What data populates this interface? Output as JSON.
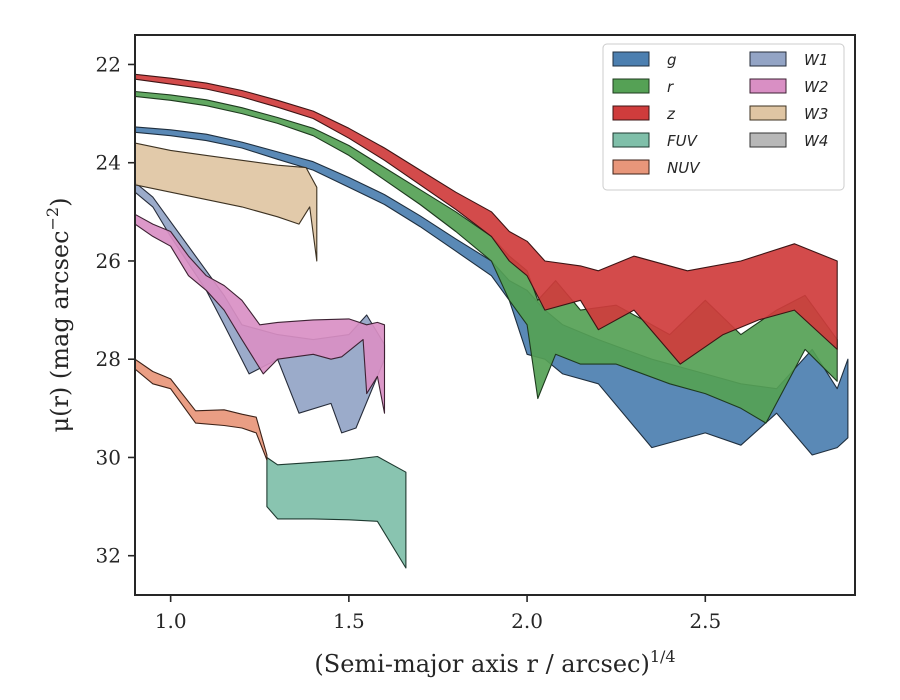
{
  "chart_data": {
    "type": "area",
    "xlabel": "(Semi-major axis r / arcsec)",
    "xlabel_sup": "1/4",
    "ylabel": "μ(r) (mag arcsec",
    "ylabel_sup": "−2",
    "ylabel_tail": ")",
    "xlim": [
      0.9,
      2.92
    ],
    "ylim": [
      32.8,
      21.4
    ],
    "y_inverted": true,
    "xticks": [
      1.0,
      1.5,
      2.0,
      2.5
    ],
    "xtick_labels": [
      "1.0",
      "1.5",
      "2.0",
      "2.5"
    ],
    "yticks": [
      22,
      24,
      26,
      28,
      30,
      32
    ],
    "ytick_labels": [
      "22",
      "24",
      "26",
      "28",
      "30",
      "32"
    ],
    "grid": false,
    "legend": {
      "placement": "top-right",
      "columns": 2
    },
    "series": [
      {
        "name": "g",
        "label": "g",
        "color": "#4c7fb0",
        "edge": "#1f2f3f",
        "upper": [
          [
            0.9,
            23.27
          ],
          [
            1.0,
            23.33
          ],
          [
            1.1,
            23.42
          ],
          [
            1.2,
            23.58
          ],
          [
            1.3,
            23.78
          ],
          [
            1.4,
            23.98
          ],
          [
            1.5,
            24.3
          ],
          [
            1.6,
            24.65
          ],
          [
            1.7,
            25.08
          ],
          [
            1.8,
            25.55
          ],
          [
            1.9,
            26.0
          ],
          [
            1.95,
            26.4
          ],
          [
            2.0,
            26.6
          ],
          [
            2.05,
            27.0
          ],
          [
            2.1,
            27.3
          ],
          [
            2.2,
            27.6
          ],
          [
            2.35,
            28.0
          ],
          [
            2.5,
            28.3
          ],
          [
            2.6,
            28.5
          ],
          [
            2.7,
            28.6
          ],
          [
            2.8,
            27.8
          ],
          [
            2.87,
            28.6
          ],
          [
            2.9,
            28.0
          ]
        ],
        "lower": [
          [
            0.9,
            23.38
          ],
          [
            1.0,
            23.45
          ],
          [
            1.1,
            23.55
          ],
          [
            1.2,
            23.7
          ],
          [
            1.3,
            23.93
          ],
          [
            1.4,
            24.15
          ],
          [
            1.5,
            24.5
          ],
          [
            1.6,
            24.85
          ],
          [
            1.7,
            25.3
          ],
          [
            1.8,
            25.8
          ],
          [
            1.9,
            26.3
          ],
          [
            1.95,
            26.8
          ],
          [
            2.0,
            27.9
          ],
          [
            2.05,
            28.0
          ],
          [
            2.1,
            28.3
          ],
          [
            2.2,
            28.5
          ],
          [
            2.35,
            29.8
          ],
          [
            2.5,
            29.5
          ],
          [
            2.6,
            29.75
          ],
          [
            2.7,
            29.1
          ],
          [
            2.8,
            29.95
          ],
          [
            2.87,
            29.8
          ],
          [
            2.9,
            29.6
          ]
        ]
      },
      {
        "name": "r",
        "label": "r",
        "color": "#55a155",
        "edge": "#1e3a1e",
        "upper": [
          [
            0.9,
            22.55
          ],
          [
            1.0,
            22.62
          ],
          [
            1.1,
            22.72
          ],
          [
            1.2,
            22.88
          ],
          [
            1.3,
            23.08
          ],
          [
            1.4,
            23.3
          ],
          [
            1.5,
            23.65
          ],
          [
            1.6,
            24.1
          ],
          [
            1.7,
            24.55
          ],
          [
            1.8,
            25.0
          ],
          [
            1.9,
            25.5
          ],
          [
            1.95,
            25.9
          ],
          [
            2.0,
            26.2
          ],
          [
            2.03,
            26.8
          ],
          [
            2.08,
            26.4
          ],
          [
            2.15,
            27.0
          ],
          [
            2.25,
            26.9
          ],
          [
            2.4,
            27.5
          ],
          [
            2.5,
            26.8
          ],
          [
            2.6,
            27.5
          ],
          [
            2.7,
            27.0
          ],
          [
            2.78,
            26.7
          ],
          [
            2.87,
            27.6
          ]
        ],
        "lower": [
          [
            0.9,
            22.65
          ],
          [
            1.0,
            22.73
          ],
          [
            1.1,
            22.84
          ],
          [
            1.2,
            23.0
          ],
          [
            1.3,
            23.2
          ],
          [
            1.4,
            23.45
          ],
          [
            1.5,
            23.85
          ],
          [
            1.6,
            24.35
          ],
          [
            1.7,
            24.85
          ],
          [
            1.8,
            25.4
          ],
          [
            1.9,
            26.0
          ],
          [
            1.95,
            26.8
          ],
          [
            2.0,
            27.3
          ],
          [
            2.03,
            28.8
          ],
          [
            2.08,
            27.9
          ],
          [
            2.15,
            28.1
          ],
          [
            2.25,
            28.1
          ],
          [
            2.4,
            28.5
          ],
          [
            2.5,
            28.7
          ],
          [
            2.6,
            29.0
          ],
          [
            2.67,
            29.3
          ],
          [
            2.78,
            27.8
          ],
          [
            2.87,
            28.45
          ]
        ]
      },
      {
        "name": "z",
        "label": "z",
        "color": "#cf3c3c",
        "edge": "#3d1414",
        "upper": [
          [
            0.9,
            22.2
          ],
          [
            1.0,
            22.28
          ],
          [
            1.1,
            22.38
          ],
          [
            1.2,
            22.53
          ],
          [
            1.3,
            22.73
          ],
          [
            1.4,
            22.95
          ],
          [
            1.5,
            23.3
          ],
          [
            1.6,
            23.7
          ],
          [
            1.7,
            24.15
          ],
          [
            1.8,
            24.6
          ],
          [
            1.9,
            25.0
          ],
          [
            1.95,
            25.4
          ],
          [
            2.0,
            25.6
          ],
          [
            2.05,
            26.0
          ],
          [
            2.15,
            26.1
          ],
          [
            2.2,
            26.2
          ],
          [
            2.3,
            25.9
          ],
          [
            2.45,
            26.2
          ],
          [
            2.6,
            26.0
          ],
          [
            2.75,
            25.65
          ],
          [
            2.87,
            26.0
          ]
        ],
        "lower": [
          [
            0.9,
            22.3
          ],
          [
            1.0,
            22.4
          ],
          [
            1.1,
            22.5
          ],
          [
            1.2,
            22.66
          ],
          [
            1.3,
            22.87
          ],
          [
            1.4,
            23.1
          ],
          [
            1.5,
            23.5
          ],
          [
            1.6,
            23.95
          ],
          [
            1.7,
            24.45
          ],
          [
            1.8,
            24.95
          ],
          [
            1.9,
            25.5
          ],
          [
            1.95,
            26.0
          ],
          [
            2.0,
            26.3
          ],
          [
            2.05,
            27.0
          ],
          [
            2.15,
            26.8
          ],
          [
            2.2,
            27.4
          ],
          [
            2.3,
            27.0
          ],
          [
            2.43,
            28.1
          ],
          [
            2.55,
            27.5
          ],
          [
            2.65,
            27.2
          ],
          [
            2.75,
            27.0
          ],
          [
            2.87,
            27.8
          ]
        ]
      },
      {
        "name": "FUV",
        "label": "FUV",
        "color": "#7fbfa9",
        "edge": "#1e3a30",
        "upper": [
          [
            1.27,
            30.0
          ],
          [
            1.3,
            30.15
          ],
          [
            1.4,
            30.1
          ],
          [
            1.5,
            30.05
          ],
          [
            1.58,
            29.98
          ],
          [
            1.66,
            30.3
          ]
        ],
        "lower": [
          [
            1.27,
            31.0
          ],
          [
            1.3,
            31.25
          ],
          [
            1.4,
            31.25
          ],
          [
            1.5,
            31.27
          ],
          [
            1.58,
            31.3
          ],
          [
            1.66,
            32.25
          ]
        ]
      },
      {
        "name": "NUV",
        "label": "NUV",
        "color": "#e8967a",
        "edge": "#3d2218",
        "upper": [
          [
            0.9,
            28.0
          ],
          [
            0.95,
            28.25
          ],
          [
            1.0,
            28.4
          ],
          [
            1.07,
            29.05
          ],
          [
            1.15,
            29.03
          ],
          [
            1.2,
            29.12
          ],
          [
            1.24,
            29.18
          ],
          [
            1.27,
            29.95
          ]
        ],
        "lower": [
          [
            0.9,
            28.2
          ],
          [
            0.95,
            28.5
          ],
          [
            1.0,
            28.6
          ],
          [
            1.07,
            29.3
          ],
          [
            1.15,
            29.35
          ],
          [
            1.2,
            29.4
          ],
          [
            1.24,
            29.5
          ],
          [
            1.27,
            30.05
          ]
        ]
      },
      {
        "name": "W1",
        "label": "W1",
        "color": "#93a4c5",
        "edge": "#262c3a",
        "upper": [
          [
            0.9,
            24.4
          ],
          [
            0.95,
            24.7
          ],
          [
            1.0,
            25.2
          ],
          [
            1.1,
            26.2
          ],
          [
            1.15,
            26.7
          ],
          [
            1.2,
            27.3
          ],
          [
            1.3,
            27.5
          ],
          [
            1.4,
            27.6
          ],
          [
            1.5,
            27.5
          ],
          [
            1.55,
            27.1
          ],
          [
            1.6,
            27.7
          ]
        ],
        "lower": [
          [
            0.9,
            24.6
          ],
          [
            0.95,
            24.9
          ],
          [
            1.0,
            25.5
          ],
          [
            1.1,
            26.6
          ],
          [
            1.15,
            27.3
          ],
          [
            1.22,
            28.3
          ],
          [
            1.3,
            28.0
          ],
          [
            1.36,
            29.1
          ],
          [
            1.45,
            28.9
          ],
          [
            1.48,
            29.5
          ],
          [
            1.52,
            29.4
          ],
          [
            1.6,
            28.0
          ]
        ]
      },
      {
        "name": "W2",
        "label": "W2",
        "color": "#d98fc4",
        "edge": "#3d2233",
        "upper": [
          [
            0.9,
            25.05
          ],
          [
            0.95,
            25.25
          ],
          [
            1.0,
            25.4
          ],
          [
            1.05,
            25.9
          ],
          [
            1.1,
            26.3
          ],
          [
            1.15,
            26.5
          ],
          [
            1.2,
            26.8
          ],
          [
            1.25,
            27.3
          ],
          [
            1.3,
            27.25
          ],
          [
            1.4,
            27.2
          ],
          [
            1.5,
            27.18
          ],
          [
            1.55,
            27.3
          ],
          [
            1.58,
            27.25
          ],
          [
            1.6,
            27.3
          ]
        ],
        "lower": [
          [
            0.9,
            25.25
          ],
          [
            0.95,
            25.5
          ],
          [
            1.0,
            25.7
          ],
          [
            1.05,
            26.3
          ],
          [
            1.1,
            26.6
          ],
          [
            1.15,
            27.0
          ],
          [
            1.2,
            27.6
          ],
          [
            1.26,
            28.3
          ],
          [
            1.3,
            28.0
          ],
          [
            1.4,
            27.9
          ],
          [
            1.45,
            28.0
          ],
          [
            1.48,
            27.95
          ],
          [
            1.54,
            27.6
          ],
          [
            1.55,
            28.7
          ],
          [
            1.58,
            28.35
          ],
          [
            1.6,
            29.1
          ]
        ]
      },
      {
        "name": "W3",
        "label": "W3",
        "color": "#dfc5a3",
        "edge": "#3d3222",
        "upper": [
          [
            0.9,
            23.6
          ],
          [
            1.0,
            23.75
          ],
          [
            1.1,
            23.85
          ],
          [
            1.2,
            23.95
          ],
          [
            1.3,
            24.05
          ],
          [
            1.38,
            24.1
          ],
          [
            1.41,
            24.5
          ]
        ],
        "lower": [
          [
            0.9,
            24.45
          ],
          [
            1.0,
            24.6
          ],
          [
            1.1,
            24.75
          ],
          [
            1.2,
            24.9
          ],
          [
            1.3,
            25.1
          ],
          [
            1.36,
            25.25
          ],
          [
            1.39,
            24.9
          ],
          [
            1.41,
            26.0
          ]
        ]
      },
      {
        "name": "W4",
        "label": "W4",
        "color": "#b8b8b8",
        "edge": "#333333",
        "upper": [],
        "lower": []
      }
    ]
  }
}
